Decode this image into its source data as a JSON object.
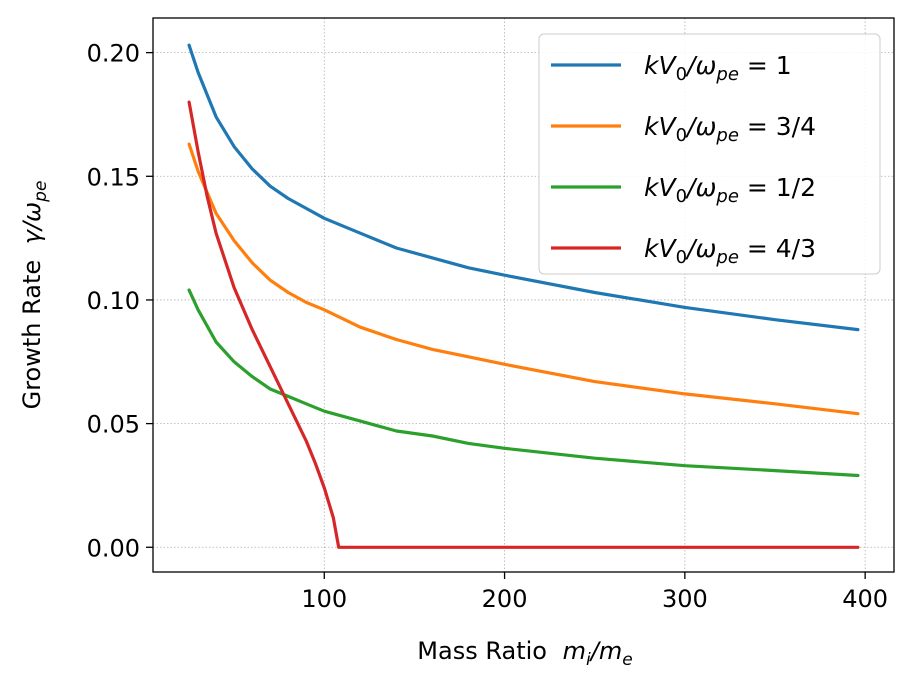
{
  "chart_data": {
    "type": "line",
    "xlabel_main": "Mass Ratio",
    "xlabel_math": {
      "var1": "m",
      "sub1": "i",
      "var2": "m",
      "sub2": "e"
    },
    "ylabel_main": "Growth Rate",
    "ylabel_math": {
      "var1": "γ",
      "var2": "ω",
      "sub2": "pe"
    },
    "xlim": [
      5,
      416
    ],
    "ylim": [
      -0.01,
      0.214
    ],
    "xticks": [
      100,
      200,
      300,
      400
    ],
    "xtick_labels": [
      "100",
      "200",
      "300",
      "400"
    ],
    "yticks": [
      0,
      0.05,
      0.1,
      0.15,
      0.2
    ],
    "ytick_labels": [
      "0.00",
      "0.05",
      "0.10",
      "0.15",
      "0.20"
    ],
    "grid": true,
    "legend_position": "top-right",
    "legend_prefix": "kV",
    "series": [
      {
        "name": "kV0/ωpe = 1",
        "legend_value": "1",
        "color": "#1f77b4",
        "x": [
          25,
          30,
          40,
          50,
          60,
          70,
          80,
          90,
          100,
          120,
          140,
          160,
          180,
          200,
          250,
          300,
          350,
          396
        ],
        "y": [
          0.203,
          0.192,
          0.174,
          0.162,
          0.153,
          0.146,
          0.141,
          0.137,
          0.133,
          0.127,
          0.121,
          0.117,
          0.113,
          0.11,
          0.103,
          0.097,
          0.092,
          0.088
        ]
      },
      {
        "name": "kV0/ωpe = 3/4",
        "legend_value": "3/4",
        "color": "#ff7f0e",
        "x": [
          25,
          30,
          40,
          50,
          60,
          70,
          80,
          90,
          100,
          120,
          140,
          160,
          180,
          200,
          250,
          300,
          350,
          396
        ],
        "y": [
          0.163,
          0.152,
          0.135,
          0.124,
          0.115,
          0.108,
          0.103,
          0.099,
          0.096,
          0.089,
          0.084,
          0.08,
          0.077,
          0.074,
          0.067,
          0.062,
          0.058,
          0.054
        ]
      },
      {
        "name": "kV0/ωpe = 1/2",
        "legend_value": "1/2",
        "color": "#2ca02c",
        "x": [
          25,
          30,
          40,
          50,
          60,
          70,
          80,
          90,
          100,
          120,
          140,
          160,
          180,
          200,
          250,
          300,
          350,
          396
        ],
        "y": [
          0.104,
          0.096,
          0.083,
          0.075,
          0.069,
          0.064,
          0.061,
          0.058,
          0.055,
          0.051,
          0.047,
          0.045,
          0.042,
          0.04,
          0.036,
          0.033,
          0.031,
          0.029
        ]
      },
      {
        "name": "kV0/ωpe = 4/3",
        "legend_value": "4/3",
        "color": "#d62728",
        "x": [
          25,
          30,
          35,
          40,
          50,
          60,
          70,
          80,
          90,
          95,
          100,
          105,
          108,
          150,
          200,
          250,
          300,
          350,
          396
        ],
        "y": [
          0.18,
          0.16,
          0.142,
          0.127,
          0.105,
          0.088,
          0.073,
          0.058,
          0.043,
          0.034,
          0.024,
          0.012,
          0.0,
          0.0,
          0.0,
          0.0,
          0.0,
          0.0,
          0.0
        ]
      }
    ]
  }
}
